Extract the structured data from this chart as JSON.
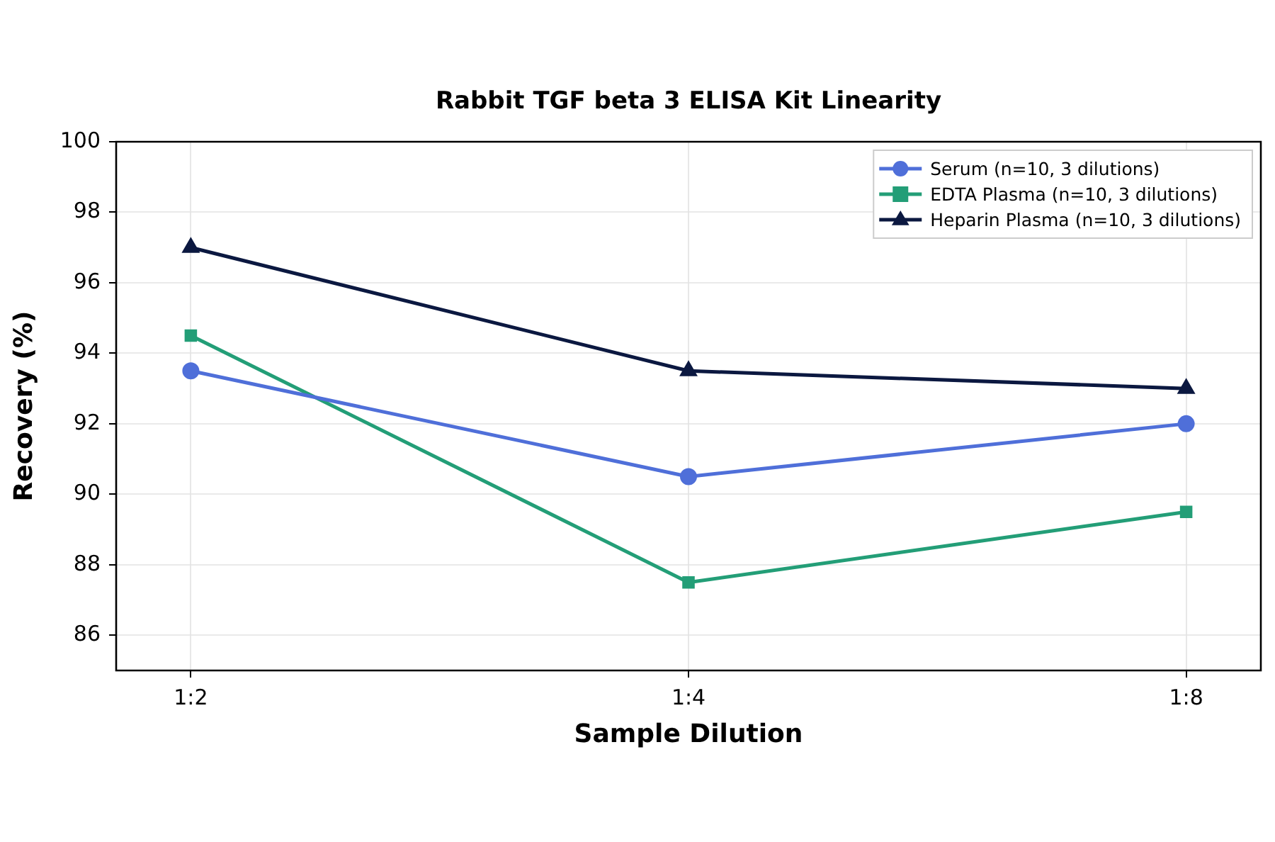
{
  "chart_data": {
    "type": "line",
    "title": "Rabbit TGF beta 3 ELISA Kit Linearity",
    "xlabel": "Sample Dilution",
    "ylabel": "Recovery (%)",
    "categories": [
      "1:2",
      "1:4",
      "1:8"
    ],
    "series": [
      {
        "name": "Serum (n=10, 3 dilutions)",
        "color": "#4f6fd9",
        "marker": "circle",
        "values": [
          93.5,
          90.5,
          92
        ]
      },
      {
        "name": "EDTA Plasma (n=10, 3 dilutions)",
        "color": "#239e77",
        "marker": "square",
        "values": [
          94.5,
          87.5,
          89.5
        ]
      },
      {
        "name": "Heparin Plasma (n=10, 3 dilutions)",
        "color": "#0b1840",
        "marker": "triangle",
        "values": [
          97,
          93.5,
          93
        ]
      }
    ],
    "ylim": [
      85,
      100
    ],
    "yticks": [
      86,
      88,
      90,
      92,
      94,
      96,
      98,
      100
    ],
    "grid": true,
    "legend": "top right",
    "line_style": "solid"
  }
}
